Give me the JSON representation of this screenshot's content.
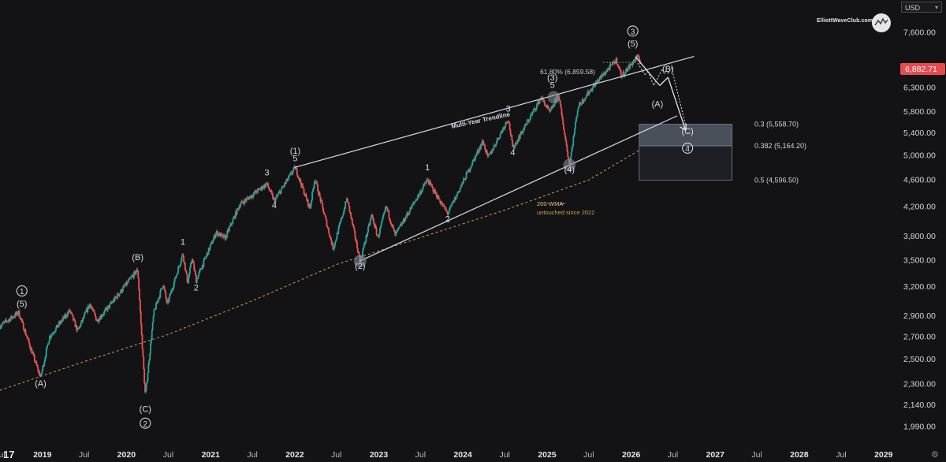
{
  "currency": "USD",
  "brand": "ElliottWaveClub.com",
  "icons": {
    "brand_logo": "wave-circle-logo",
    "tv_logo": "tradingview-logo",
    "settings": "gear-icon"
  },
  "colors": {
    "background": "#131316",
    "up": "#26a69a",
    "down": "#ef5350",
    "annotation": "#c9cdd8",
    "wma": "#c9a24a",
    "zone": "#6f7884",
    "last_price_bg": "#e84a4f"
  },
  "chart_data": {
    "type": "candlestick",
    "log_scale": true,
    "ylim": [
      1880,
      8300
    ],
    "xlim": [
      "2018-07-01",
      "2029-03-01"
    ],
    "last_price": "6,882.71",
    "y_ticks": [
      {
        "v": 7600,
        "label": "7,600.00"
      },
      {
        "v": 6300,
        "label": "6,300.00"
      },
      {
        "v": 5800,
        "label": "5,800.00"
      },
      {
        "v": 5400,
        "label": "5,400.00"
      },
      {
        "v": 5000,
        "label": "5,000.00"
      },
      {
        "v": 4600,
        "label": "4,600.00"
      },
      {
        "v": 4200,
        "label": "4,200.00"
      },
      {
        "v": 3800,
        "label": "3,800.00"
      },
      {
        "v": 3500,
        "label": "3,500.00"
      },
      {
        "v": 3200,
        "label": "3,200.00"
      },
      {
        "v": 2900,
        "label": "2,900.00"
      },
      {
        "v": 2700,
        "label": "2,700.00"
      },
      {
        "v": 2500,
        "label": "2,500.00"
      },
      {
        "v": 2300,
        "label": "2,300.00"
      },
      {
        "v": 2140,
        "label": "2,140.00"
      },
      {
        "v": 1990,
        "label": "1,990.00"
      }
    ],
    "x_ticks": [
      {
        "d": "2018-07-01",
        "label": "Jul",
        "bold": false
      },
      {
        "d": "2019-01-01",
        "label": "2019",
        "bold": true
      },
      {
        "d": "2019-07-01",
        "label": "Jul",
        "bold": false
      },
      {
        "d": "2020-01-01",
        "label": "2020",
        "bold": true
      },
      {
        "d": "2020-07-01",
        "label": "Jul",
        "bold": false
      },
      {
        "d": "2021-01-01",
        "label": "2021",
        "bold": true
      },
      {
        "d": "2021-07-01",
        "label": "Jul",
        "bold": false
      },
      {
        "d": "2022-01-01",
        "label": "2022",
        "bold": true
      },
      {
        "d": "2022-07-01",
        "label": "Jul",
        "bold": false
      },
      {
        "d": "2023-01-01",
        "label": "2023",
        "bold": true
      },
      {
        "d": "2023-07-01",
        "label": "Jul",
        "bold": false
      },
      {
        "d": "2024-01-01",
        "label": "2024",
        "bold": true
      },
      {
        "d": "2024-07-01",
        "label": "Jul",
        "bold": false
      },
      {
        "d": "2025-01-01",
        "label": "2025",
        "bold": true
      },
      {
        "d": "2025-07-01",
        "label": "Jul",
        "bold": false
      },
      {
        "d": "2026-01-01",
        "label": "2026",
        "bold": true
      },
      {
        "d": "2026-07-01",
        "label": "Jul",
        "bold": false
      },
      {
        "d": "2027-01-01",
        "label": "2027",
        "bold": true
      },
      {
        "d": "2027-07-01",
        "label": "Jul",
        "bold": false
      },
      {
        "d": "2028-01-01",
        "label": "2028",
        "bold": true
      },
      {
        "d": "2028-07-01",
        "label": "Jul",
        "bold": false
      },
      {
        "d": "2029-01-01",
        "label": "2029",
        "bold": true
      }
    ],
    "price_path": [
      [
        "2018-07-01",
        2800
      ],
      [
        "2018-09-20",
        2930
      ],
      [
        "2018-10-25",
        2700
      ],
      [
        "2018-12-24",
        2350
      ],
      [
        "2019-02-01",
        2700
      ],
      [
        "2019-04-30",
        2950
      ],
      [
        "2019-06-03",
        2750
      ],
      [
        "2019-07-26",
        3020
      ],
      [
        "2019-08-26",
        2850
      ],
      [
        "2019-10-20",
        3000
      ],
      [
        "2020-02-19",
        3390
      ],
      [
        "2020-03-23",
        2200
      ],
      [
        "2020-04-29",
        2930
      ],
      [
        "2020-06-08",
        3230
      ],
      [
        "2020-06-26",
        3010
      ],
      [
        "2020-09-02",
        3580
      ],
      [
        "2020-09-23",
        3240
      ],
      [
        "2020-10-12",
        3530
      ],
      [
        "2020-10-30",
        3270
      ],
      [
        "2021-01-25",
        3850
      ],
      [
        "2021-03-04",
        3770
      ],
      [
        "2021-05-07",
        4230
      ],
      [
        "2021-09-02",
        4540
      ],
      [
        "2021-10-04",
        4280
      ],
      [
        "2022-01-03",
        4800
      ],
      [
        "2022-03-08",
        4170
      ],
      [
        "2022-03-29",
        4630
      ],
      [
        "2022-06-17",
        3640
      ],
      [
        "2022-08-16",
        4320
      ],
      [
        "2022-10-12",
        3490
      ],
      [
        "2022-12-01",
        4080
      ],
      [
        "2022-12-28",
        3780
      ],
      [
        "2023-02-02",
        4200
      ],
      [
        "2023-03-13",
        3810
      ],
      [
        "2023-07-31",
        4600
      ],
      [
        "2023-10-27",
        4100
      ],
      [
        "2024-03-28",
        5250
      ],
      [
        "2024-04-19",
        4950
      ],
      [
        "2024-07-16",
        5670
      ],
      [
        "2024-08-05",
        5120
      ],
      [
        "2024-12-06",
        6090
      ],
      [
        "2025-01-13",
        5780
      ],
      [
        "2025-02-19",
        6150
      ],
      [
        "2025-04-08",
        4840
      ],
      [
        "2025-05-15",
        5900
      ],
      [
        "2025-08-01",
        6400
      ],
      [
        "2025-10-29",
        6920
      ],
      [
        "2025-11-20",
        6540
      ],
      [
        "2026-01-27",
        6990
      ],
      [
        "2026-02-10",
        6882.71
      ]
    ],
    "wma_200": [
      [
        "2018-07-01",
        2250
      ],
      [
        "2019-07-01",
        2480
      ],
      [
        "2020-07-01",
        2720
      ],
      [
        "2021-07-01",
        3050
      ],
      [
        "2022-07-01",
        3450
      ],
      [
        "2023-07-01",
        3780
      ],
      [
        "2024-07-01",
        4150
      ],
      [
        "2025-07-01",
        4600
      ],
      [
        "2026-02-10",
        5100
      ]
    ],
    "lines": [
      {
        "name": "multi-year-trendline",
        "from": [
          "2022-01-01",
          4800
        ],
        "to": [
          "2026-10-01",
          7000
        ]
      },
      {
        "name": "lower-channel-line",
        "from": [
          "2022-10-10",
          3490
        ],
        "to": [
          "2026-07-20",
          5720
        ]
      }
    ],
    "fib_61_8_line": {
      "from": [
        "2025-09-01",
        6859.58
      ],
      "to": [
        "2026-01-25",
        6859.58
      ]
    },
    "projection": [
      {
        "from": [
          "2026-01-20",
          6990
        ],
        "to": [
          "2026-05-05",
          6340
        ]
      },
      {
        "from": [
          "2026-05-05",
          6340
        ],
        "to": [
          "2026-06-10",
          6520
        ]
      },
      {
        "from": [
          "2026-06-10",
          6520
        ],
        "to": [
          "2026-08-25",
          5450
        ]
      }
    ],
    "projection_detail": [
      {
        "from": [
          "2026-01-30",
          6840
        ],
        "to": [
          "2026-03-01",
          6580
        ]
      },
      {
        "from": [
          "2026-03-01",
          6580
        ],
        "to": [
          "2026-03-15",
          6650
        ]
      },
      {
        "from": [
          "2026-03-15",
          6650
        ],
        "to": [
          "2026-04-08",
          6350
        ]
      },
      {
        "from": [
          "2026-04-10",
          6350
        ],
        "to": [
          "2026-05-15",
          6690
        ]
      },
      {
        "from": [
          "2026-05-15",
          6690
        ],
        "to": [
          "2026-06-10",
          6610
        ]
      },
      {
        "from": [
          "2026-06-10",
          6610
        ],
        "to": [
          "2026-06-25",
          6740
        ]
      },
      {
        "from": [
          "2026-06-25",
          6740
        ],
        "to": [
          "2026-08-30",
          5460
        ]
      }
    ],
    "fib_zones": [
      {
        "name": "zone-upper",
        "top": 5558.7,
        "bottom": 5164.2,
        "from": "2026-02-05",
        "to": "2027-03-15"
      },
      {
        "name": "zone-lower",
        "top": 5164.2,
        "bottom": 4596.5,
        "from": "2026-02-05",
        "to": "2027-03-15"
      }
    ],
    "fib_labels": [
      {
        "text": "0.3 (5,558.70)",
        "v": 5558.7
      },
      {
        "text": "0.382 (5,164.20)",
        "v": 5164.2
      },
      {
        "text": "0.5 (4,596.50)",
        "v": 4596.5
      }
    ],
    "fib_61_8_label": "61.80% (6,859.58)",
    "trendline_label": "Multi-Year Trendline",
    "wma_label": "200-WMA",
    "wma_note": "untouched since 2022",
    "markers": [
      {
        "d": "2022-10-12",
        "v": 3490
      },
      {
        "d": "2025-01-30",
        "v": 6090
      },
      {
        "d": "2025-04-08",
        "v": 4840
      }
    ],
    "wave_labels": [
      {
        "text": "1",
        "circled": true,
        "d": "2018-10-04",
        "v": 3120
      },
      {
        "text": "(5)",
        "d": "2018-10-04",
        "v": 2990
      },
      {
        "text": "(A)",
        "d": "2018-12-24",
        "v": 2280
      },
      {
        "text": "(B)",
        "d": "2020-02-19",
        "v": 3500
      },
      {
        "text": "(C)",
        "d": "2020-03-23",
        "v": 2090
      },
      {
        "text": "2",
        "circled": true,
        "d": "2020-03-23",
        "v": 1990
      },
      {
        "text": "1",
        "d": "2020-09-02",
        "v": 3690
      },
      {
        "text": "2",
        "d": "2020-10-30",
        "v": 3160
      },
      {
        "text": "3",
        "d": "2021-09-02",
        "v": 4670
      },
      {
        "text": "4",
        "d": "2021-10-04",
        "v": 4180
      },
      {
        "text": "(1)",
        "d": "2022-01-03",
        "v": 5030
      },
      {
        "text": "5",
        "d": "2022-01-03",
        "v": 4900
      },
      {
        "text": "(2)",
        "d": "2022-10-12",
        "v": 3400
      },
      {
        "text": "1",
        "d": "2023-07-31",
        "v": 4750
      },
      {
        "text": "2",
        "d": "2023-10-27",
        "v": 3990
      },
      {
        "text": "3",
        "d": "2024-07-16",
        "v": 5800
      },
      {
        "text": "4",
        "d": "2024-08-05",
        "v": 5000
      },
      {
        "text": "(3)",
        "d": "2025-01-24",
        "v": 6450
      },
      {
        "text": "5",
        "d": "2025-01-24",
        "v": 6290
      },
      {
        "text": "(4)",
        "d": "2025-04-08",
        "v": 4720
      },
      {
        "text": "3",
        "circled": true,
        "d": "2026-01-08",
        "v": 7550
      },
      {
        "text": "(5)",
        "d": "2026-01-08",
        "v": 7240
      },
      {
        "text": "(A)",
        "d": "2026-04-25",
        "v": 5900
      },
      {
        "text": "(B)",
        "d": "2026-06-10",
        "v": 6640
      },
      {
        "text": "(C)",
        "d": "2026-09-03",
        "v": 5380
      },
      {
        "text": "4",
        "circled": true,
        "d": "2026-09-03",
        "v": 5070
      }
    ]
  }
}
